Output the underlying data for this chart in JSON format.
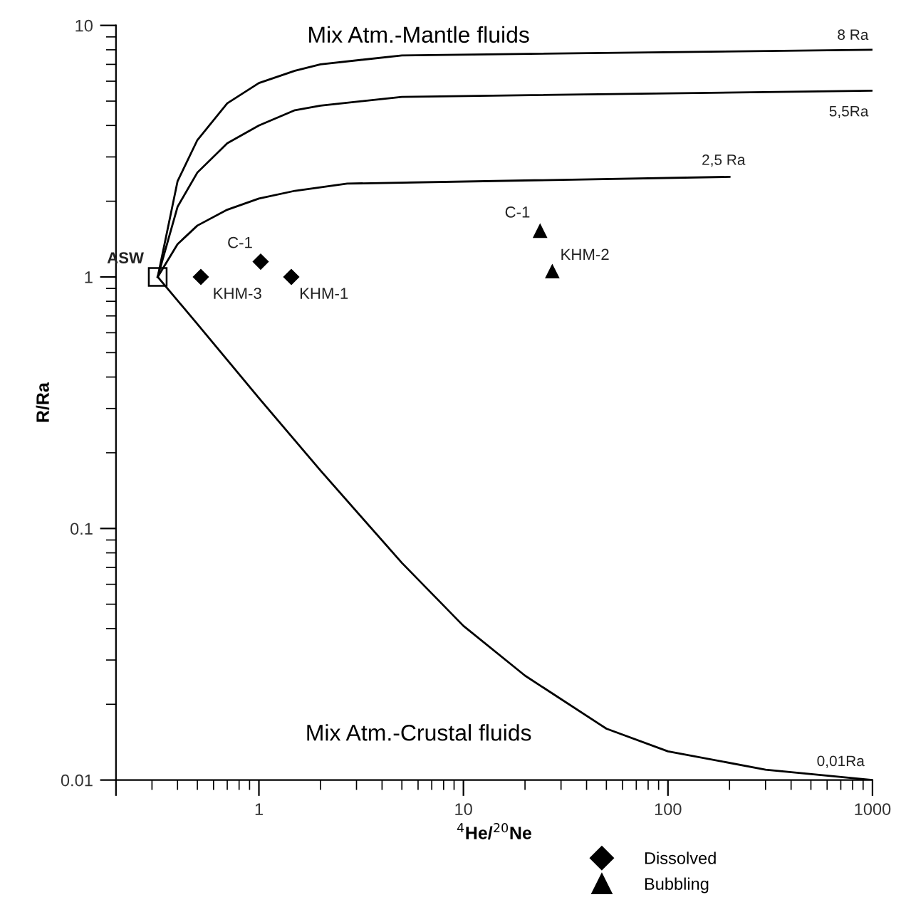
{
  "chart_data": {
    "type": "scatter",
    "xlabel": "$^{4}$He/$^{20}$Ne",
    "ylabel": "R/Ra",
    "log": "xy",
    "xlim": [
      0.2,
      1000
    ],
    "ylim": [
      0.01,
      10
    ],
    "xticks": [
      {
        "value": 0.2,
        "label": null
      },
      1,
      10,
      100,
      1000
    ],
    "yticks": [
      0.01,
      0.1,
      1,
      10
    ],
    "grid": false,
    "legend": "bottom right",
    "series": [
      {
        "type": "line",
        "color": "#000000",
        "marker": "none",
        "x": [
          0.32,
          0.4,
          0.5,
          0.7,
          1,
          1.5,
          2,
          5,
          1000
        ],
        "values": [
          1,
          2.4,
          3.5,
          4.9,
          5.9,
          6.6,
          7.0,
          7.6,
          8
        ]
      },
      {
        "type": "line",
        "color": "#000000",
        "marker": "none",
        "x": [
          0.32,
          0.4,
          0.5,
          0.7,
          1,
          1.5,
          2,
          5,
          1000
        ],
        "values": [
          1,
          1.9,
          2.6,
          3.4,
          4.0,
          4.6,
          4.8,
          5.2,
          5.5
        ]
      },
      {
        "type": "line",
        "color": "#000000",
        "marker": "none",
        "x": [
          0.32,
          0.4,
          0.5,
          0.7,
          1,
          1.5,
          2.7,
          200
        ],
        "values": [
          1,
          1.35,
          1.6,
          1.85,
          2.05,
          2.2,
          2.35,
          2.5
        ]
      },
      {
        "type": "line",
        "color": "#000000",
        "marker": "none",
        "x": [
          0.32,
          0.5,
          1,
          2,
          5,
          10,
          20,
          50,
          100,
          300,
          1000
        ],
        "values": [
          1,
          0.65,
          0.33,
          0.17,
          0.073,
          0.041,
          0.026,
          0.016,
          0.013,
          0.011,
          0.01
        ]
      },
      {
        "color": "#000000",
        "marker": "square",
        "x": [
          0.32
        ],
        "values": [
          1
        ]
      },
      {
        "name": "Dissolved",
        "color": "#000000",
        "marker": "diamond",
        "x": [
          0.52,
          1.02,
          1.44
        ],
        "values": [
          1.0,
          1.15,
          1.0
        ]
      },
      {
        "name": "Bubbling",
        "color": "#000000",
        "marker": "triangle",
        "x": [
          23.7,
          27.2
        ],
        "values": [
          1.52,
          1.05
        ]
      }
    ],
    "annotations": [
      "Mix Atm.-Mantle fluids",
      "Mix Atm.-Crustal fluids",
      {
        "text": "8 Ra",
        "x": 1000,
        "y": 8
      },
      {
        "text": "5,5Ra",
        "x": 1000,
        "y": 5.5
      },
      {
        "text": "2,5 Ra",
        "x": 200,
        "y": 2.5
      },
      {
        "text": "0,01Ra",
        "x": 1000,
        "y": 0.01
      },
      {
        "text": "ASW",
        "x": 0.32,
        "y": 1
      },
      {
        "text": "KHM-3",
        "x": 0.52,
        "y": 1.0
      },
      {
        "text": "C-1",
        "x": 1.02,
        "y": 1.15
      },
      {
        "text": "KHM-1",
        "x": 1.44,
        "y": 1.0
      },
      {
        "text": "C-1",
        "x": 23.7,
        "y": 1.52
      },
      {
        "text": "KHM-2",
        "x": 27.2,
        "y": 1.05
      }
    ]
  }
}
